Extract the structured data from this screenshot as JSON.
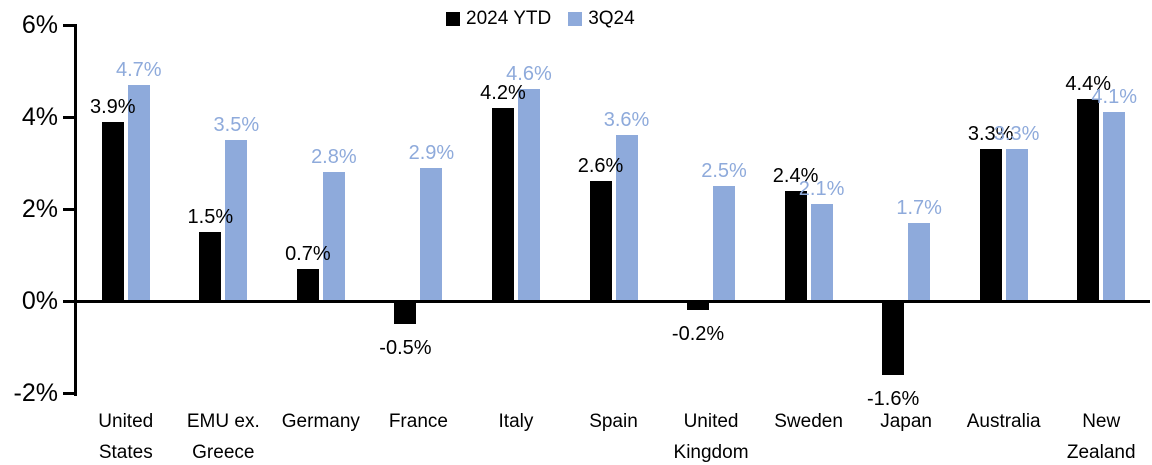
{
  "chart_data": {
    "type": "bar",
    "title": "",
    "categories": [
      "United States",
      "EMU ex. Greece",
      "Germany",
      "France",
      "Italy",
      "Spain",
      "United Kingdom",
      "Sweden",
      "Japan",
      "Australia",
      "New Zealand"
    ],
    "series": [
      {
        "name": "2024 YTD",
        "color": "#000000",
        "values": [
          3.9,
          1.5,
          0.7,
          -0.5,
          4.2,
          2.6,
          -0.2,
          2.4,
          -1.6,
          3.3,
          4.4
        ]
      },
      {
        "name": "3Q24",
        "color": "#8EAADB",
        "values": [
          4.7,
          3.5,
          2.8,
          2.9,
          4.6,
          3.6,
          2.5,
          2.1,
          1.7,
          3.3,
          4.1
        ]
      }
    ],
    "value_suffix": "%",
    "y_ticks": [
      {
        "value": 6,
        "label": "6%"
      },
      {
        "value": 4,
        "label": "4%"
      },
      {
        "value": 2,
        "label": "2%"
      },
      {
        "value": 0,
        "label": "0%"
      },
      {
        "value": -2,
        "label": "-2%"
      }
    ],
    "ylim": [
      -2,
      6
    ],
    "xlabel": "",
    "ylabel": "",
    "grid": false,
    "legend_position": "top-center",
    "axis_color": "#000000",
    "background_color": "#FFFFFF"
  }
}
